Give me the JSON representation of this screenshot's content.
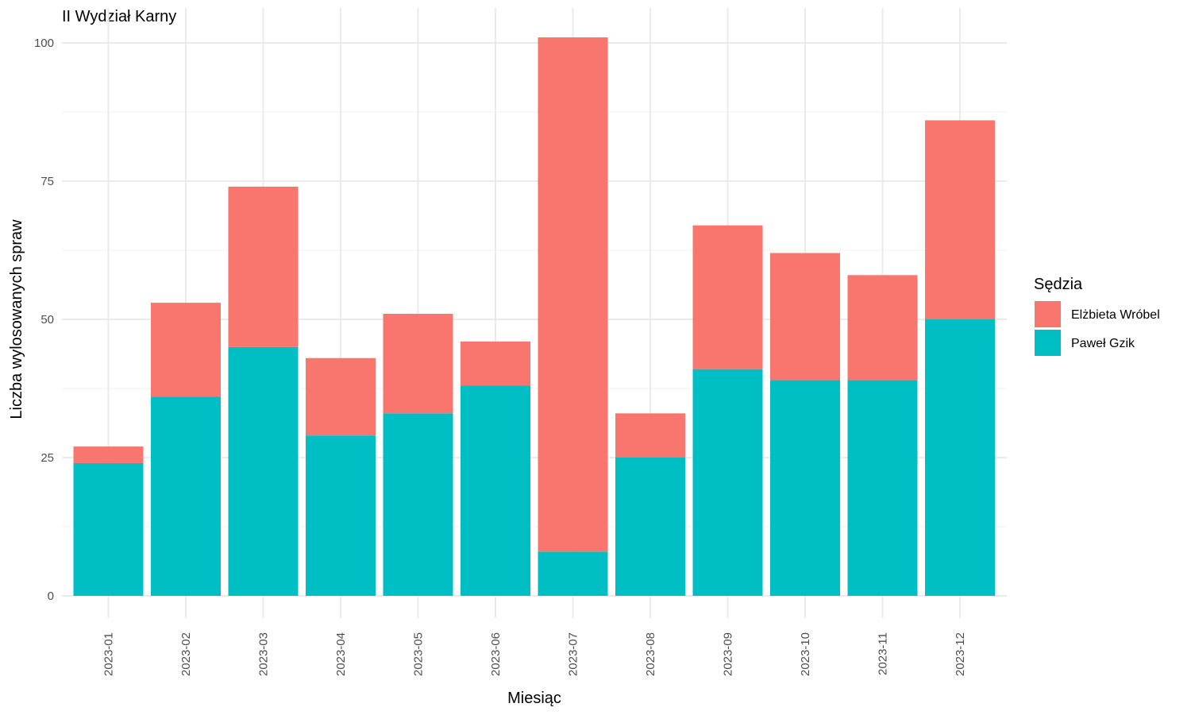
{
  "chart_data": {
    "type": "bar",
    "stacked": true,
    "title": "II Wydział Karny",
    "xlabel": "Miesiąc",
    "ylabel": "Liczba wylosowanych spraw",
    "categories": [
      "2023-01",
      "2023-02",
      "2023-03",
      "2023-04",
      "2023-05",
      "2023-06",
      "2023-07",
      "2023-08",
      "2023-09",
      "2023-10",
      "2023-11",
      "2023-12"
    ],
    "series": [
      {
        "name": "Paweł Gzik",
        "color": "#00BFC4",
        "values": [
          24,
          36,
          45,
          29,
          33,
          38,
          8,
          25,
          41,
          39,
          39,
          50
        ]
      },
      {
        "name": "Elżbieta Wróbel",
        "color": "#F8766D",
        "values": [
          3,
          17,
          29,
          14,
          18,
          8,
          93,
          8,
          26,
          23,
          19,
          36
        ]
      }
    ],
    "ylim": [
      0,
      106
    ],
    "yticks": [
      0,
      25,
      50,
      75,
      100
    ],
    "grid": true,
    "legend": {
      "title": "Sędzia",
      "placement": "right",
      "entries": [
        {
          "label": "Elżbieta Wróbel",
          "color": "#F8766D"
        },
        {
          "label": "Paweł Gzik",
          "color": "#00BFC4"
        }
      ]
    }
  }
}
